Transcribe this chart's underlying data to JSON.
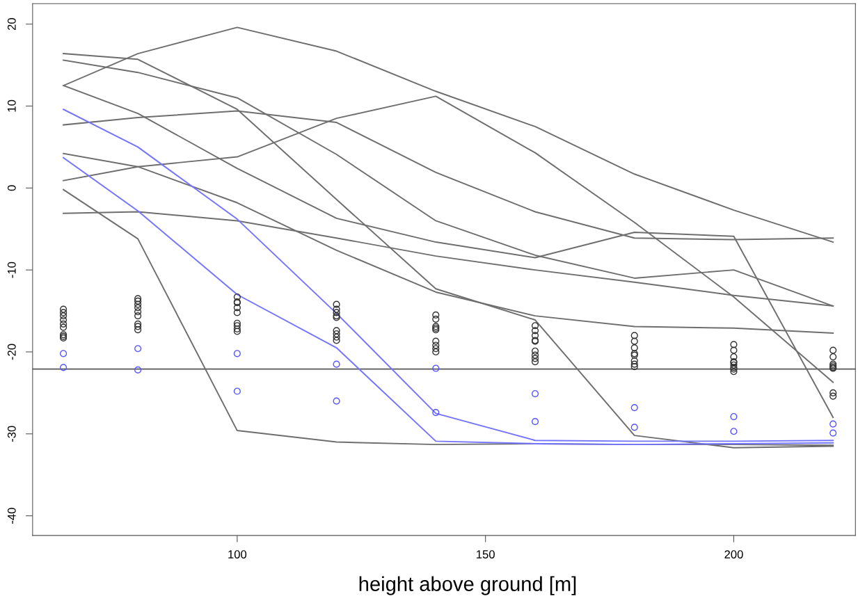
{
  "chart_data": {
    "type": "line",
    "xlabel": "height above ground [m]",
    "x": [
      65,
      80,
      100,
      120,
      140,
      160,
      180,
      200,
      220
    ],
    "xlim": [
      58.8,
      224.5
    ],
    "xticks": [
      100,
      150,
      200
    ],
    "ylim": [
      -42.4,
      22.5
    ],
    "yticks": [
      -40,
      -30,
      -20,
      -10,
      0,
      10,
      20
    ],
    "grid": false,
    "line_style": "solid",
    "ref_lines": [
      {
        "axis": "y",
        "value": -22.1,
        "color": "#555555"
      }
    ],
    "series": [
      {
        "color": "#6e6e6e",
        "values": [
          12.5,
          16.4,
          19.6,
          16.7,
          11.8,
          7.5,
          1.7,
          -2.7,
          -6.6
        ]
      },
      {
        "color": "#6e6e6e",
        "values": [
          0.9,
          2.6,
          3.8,
          8.5,
          11.2,
          4.3,
          -4.2,
          -13.3,
          -23.7
        ]
      },
      {
        "color": "#6e6e6e",
        "values": [
          16.4,
          15.7,
          9.6,
          -1.4,
          -12.3,
          -16.1,
          -30.2,
          -31.7,
          -31.5
        ]
      },
      {
        "color": "#6e6e6e",
        "values": [
          15.6,
          14.1,
          11.0,
          4.1,
          -4.0,
          -8.2,
          -11.0,
          -10.0,
          -14.4
        ]
      },
      {
        "color": "#6e6e6e",
        "values": [
          12.5,
          9.1,
          2.4,
          -3.7,
          -6.6,
          -8.5,
          -5.4,
          -5.9,
          -28.0
        ]
      },
      {
        "color": "#6e6e6e",
        "values": [
          7.7,
          8.6,
          9.4,
          8.0,
          1.9,
          -2.9,
          -6.1,
          -6.3,
          -6.1
        ]
      },
      {
        "color": "#6e6e6e",
        "values": [
          4.2,
          2.6,
          -1.8,
          -7.6,
          -12.7,
          -15.6,
          -16.9,
          -17.1,
          -17.7
        ]
      },
      {
        "color": "#6e6e6e",
        "values": [
          -0.2,
          -6.2,
          -29.6,
          -31.0,
          -31.3,
          -31.2,
          -31.3,
          -31.3,
          -31.4
        ]
      },
      {
        "color": "#6e6e6e",
        "values": [
          -3.1,
          -2.9,
          -4.0,
          -6.1,
          -8.3,
          -10.0,
          -11.5,
          -13.1,
          -14.4
        ]
      },
      {
        "color": "#7373ff",
        "values": [
          9.6,
          5.0,
          -3.8,
          -15.3,
          -27.5,
          -30.8,
          -30.9,
          -30.9,
          -30.8
        ]
      },
      {
        "color": "#7373ff",
        "values": [
          3.7,
          -2.8,
          -13.0,
          -19.5,
          -30.9,
          -31.2,
          -31.3,
          -31.2,
          -31.1
        ]
      },
      {
        "type": "scatter",
        "marker": "circle",
        "color": "#333333",
        "x": [
          65,
          65,
          65,
          65,
          65,
          65,
          65,
          65,
          65,
          80,
          80,
          80,
          80,
          80,
          80,
          80,
          80,
          80,
          100,
          100,
          100,
          100,
          100,
          100,
          100,
          100,
          100,
          120,
          120,
          120,
          120,
          120,
          120,
          120,
          120,
          120,
          140,
          140,
          140,
          140,
          140,
          140,
          140,
          140,
          140,
          160,
          160,
          160,
          160,
          160,
          160,
          160,
          160,
          160,
          180,
          180,
          180,
          180,
          180,
          180,
          180,
          180,
          200,
          200,
          200,
          200,
          200,
          200,
          200,
          200,
          200,
          220,
          220,
          220,
          220,
          220,
          220,
          220,
          220
        ],
        "values": [
          -14.8,
          -15.2,
          -15.6,
          -16.1,
          -16.6,
          -17.0,
          -17.9,
          -18.1,
          -18.3,
          -13.5,
          -13.8,
          -14.2,
          -14.6,
          -15.1,
          -15.6,
          -16.6,
          -16.9,
          -17.3,
          -13.3,
          -13.9,
          -14.0,
          -14.6,
          -15.2,
          -16.5,
          -16.8,
          -17.2,
          -17.5,
          -14.2,
          -14.8,
          -15.2,
          -15.6,
          -15.8,
          -17.4,
          -17.8,
          -18.2,
          -18.6,
          -15.5,
          -16.0,
          -16.9,
          -17.1,
          -17.3,
          -18.7,
          -19.2,
          -19.6,
          -20.0,
          -16.8,
          -17.4,
          -18.0,
          -18.6,
          -18.7,
          -19.9,
          -20.4,
          -20.8,
          -21.2,
          -18.0,
          -18.7,
          -19.5,
          -20.2,
          -20.4,
          -21.1,
          -21.5,
          -21.8,
          -19.1,
          -19.8,
          -20.6,
          -21.2,
          -21.3,
          -21.6,
          -21.9,
          -22.1,
          -22.4,
          -19.8,
          -20.6,
          -21.5,
          -21.7,
          -21.9,
          -22.0,
          -25.0,
          -25.4
        ]
      },
      {
        "type": "scatter",
        "marker": "circle",
        "color": "#5555ff",
        "x": [
          65,
          65,
          80,
          80,
          100,
          100,
          120,
          120,
          140,
          140,
          160,
          160,
          180,
          180,
          200,
          200,
          220,
          220
        ],
        "values": [
          -20.2,
          -21.9,
          -19.6,
          -22.2,
          -20.2,
          -24.8,
          -21.5,
          -26.0,
          -22.0,
          -27.4,
          -25.1,
          -28.5,
          -26.8,
          -29.2,
          -27.9,
          -29.7,
          -28.8,
          -29.9
        ]
      }
    ]
  }
}
